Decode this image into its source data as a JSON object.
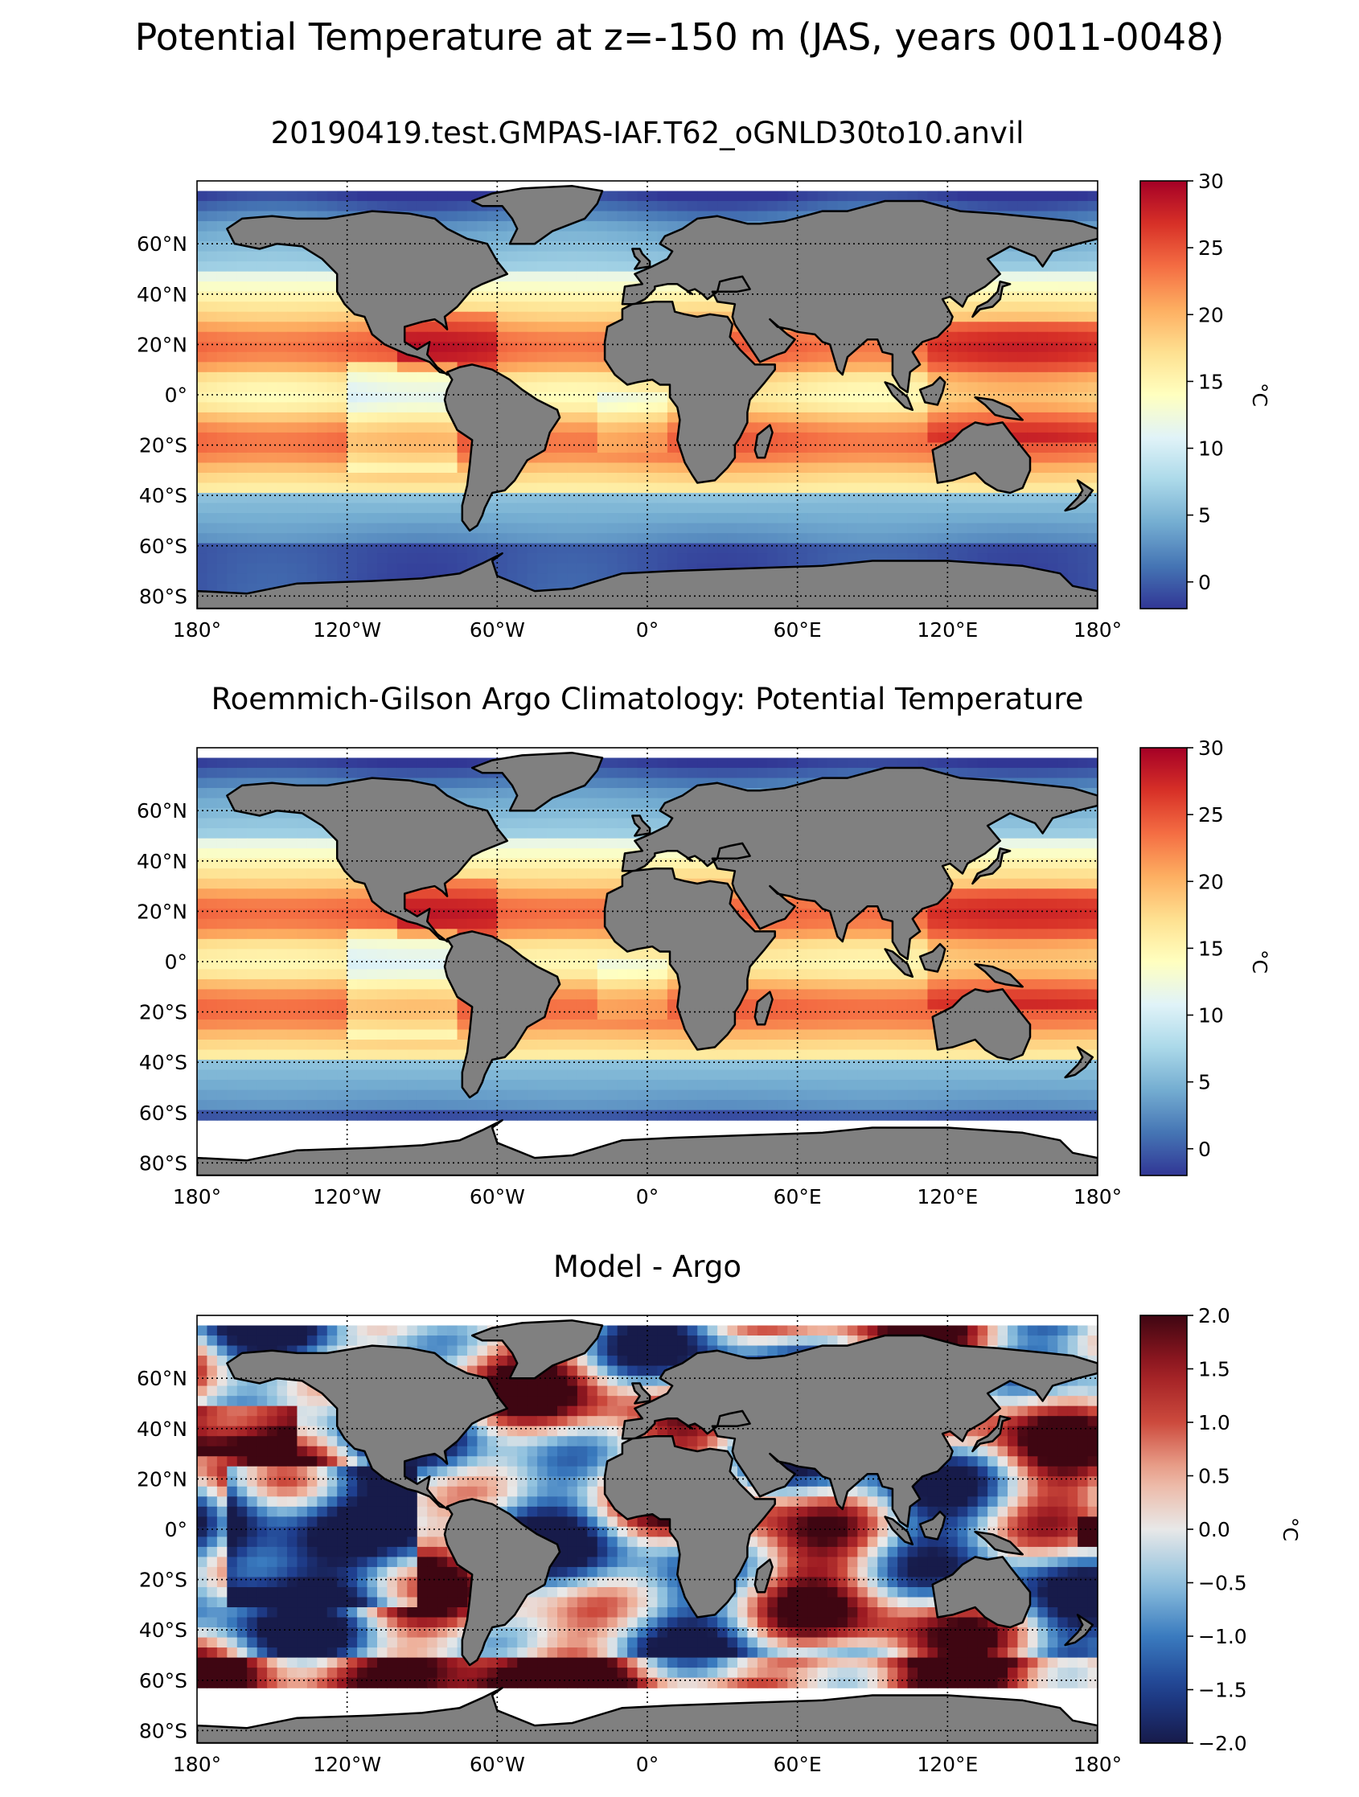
{
  "figure": {
    "title": "Potential Temperature at z=-150 m (JAS, years 0011-0048)"
  },
  "colors": {
    "land": "#808080",
    "no_data": "#ffffff",
    "coast": "#000000",
    "grid": "#000000"
  },
  "map_axes": {
    "lon_ticks": [
      "180°",
      "120°W",
      "60°W",
      "0°",
      "60°E",
      "120°E",
      "180°"
    ],
    "lon_values": [
      -180,
      -120,
      -60,
      0,
      60,
      120,
      180
    ],
    "lat_ticks": [
      "60°N",
      "40°N",
      "20°N",
      "0°",
      "20°S",
      "40°S",
      "60°S",
      "80°S"
    ],
    "lat_values": [
      60,
      40,
      20,
      0,
      -20,
      -40,
      -60,
      -80
    ],
    "lat_range": [
      -85,
      85
    ],
    "lon_range": [
      -180,
      180
    ],
    "projection": "plate-carree",
    "gridlines": "dotted"
  },
  "panels": [
    {
      "title": "20190419.test.GMPAS-IAF.T62_oGNLD30to10.anvil",
      "colormap": "RdYlBu_r",
      "value_range": [
        -2,
        30
      ],
      "colorbar_ticks": [
        "30",
        "25",
        "20",
        "15",
        "10",
        "5",
        "0"
      ],
      "colorbar_values": [
        30,
        25,
        20,
        15,
        10,
        5,
        0
      ],
      "colorbar_label": "°C",
      "field": "model",
      "argo_mask_south": false
    },
    {
      "title": "Roemmich-Gilson Argo Climatology: Potential Temperature",
      "colormap": "RdYlBu_r",
      "value_range": [
        -2,
        30
      ],
      "colorbar_ticks": [
        "30",
        "25",
        "20",
        "15",
        "10",
        "5",
        "0"
      ],
      "colorbar_values": [
        30,
        25,
        20,
        15,
        10,
        5,
        0
      ],
      "colorbar_label": "°C",
      "field": "obs",
      "argo_mask_south": true
    },
    {
      "title": "Model - Argo",
      "colormap": "RdBu_r",
      "value_range": [
        -2,
        2
      ],
      "colorbar_ticks": [
        "2.0",
        "1.5",
        "1.0",
        "0.5",
        "0.0",
        "−0.5",
        "−1.0",
        "−1.5",
        "−2.0"
      ],
      "colorbar_values": [
        2,
        1.5,
        1,
        0.5,
        0,
        -0.5,
        -1,
        -1.5,
        -2
      ],
      "colorbar_label": "°C",
      "field": "bias",
      "argo_mask_south": true
    }
  ]
}
